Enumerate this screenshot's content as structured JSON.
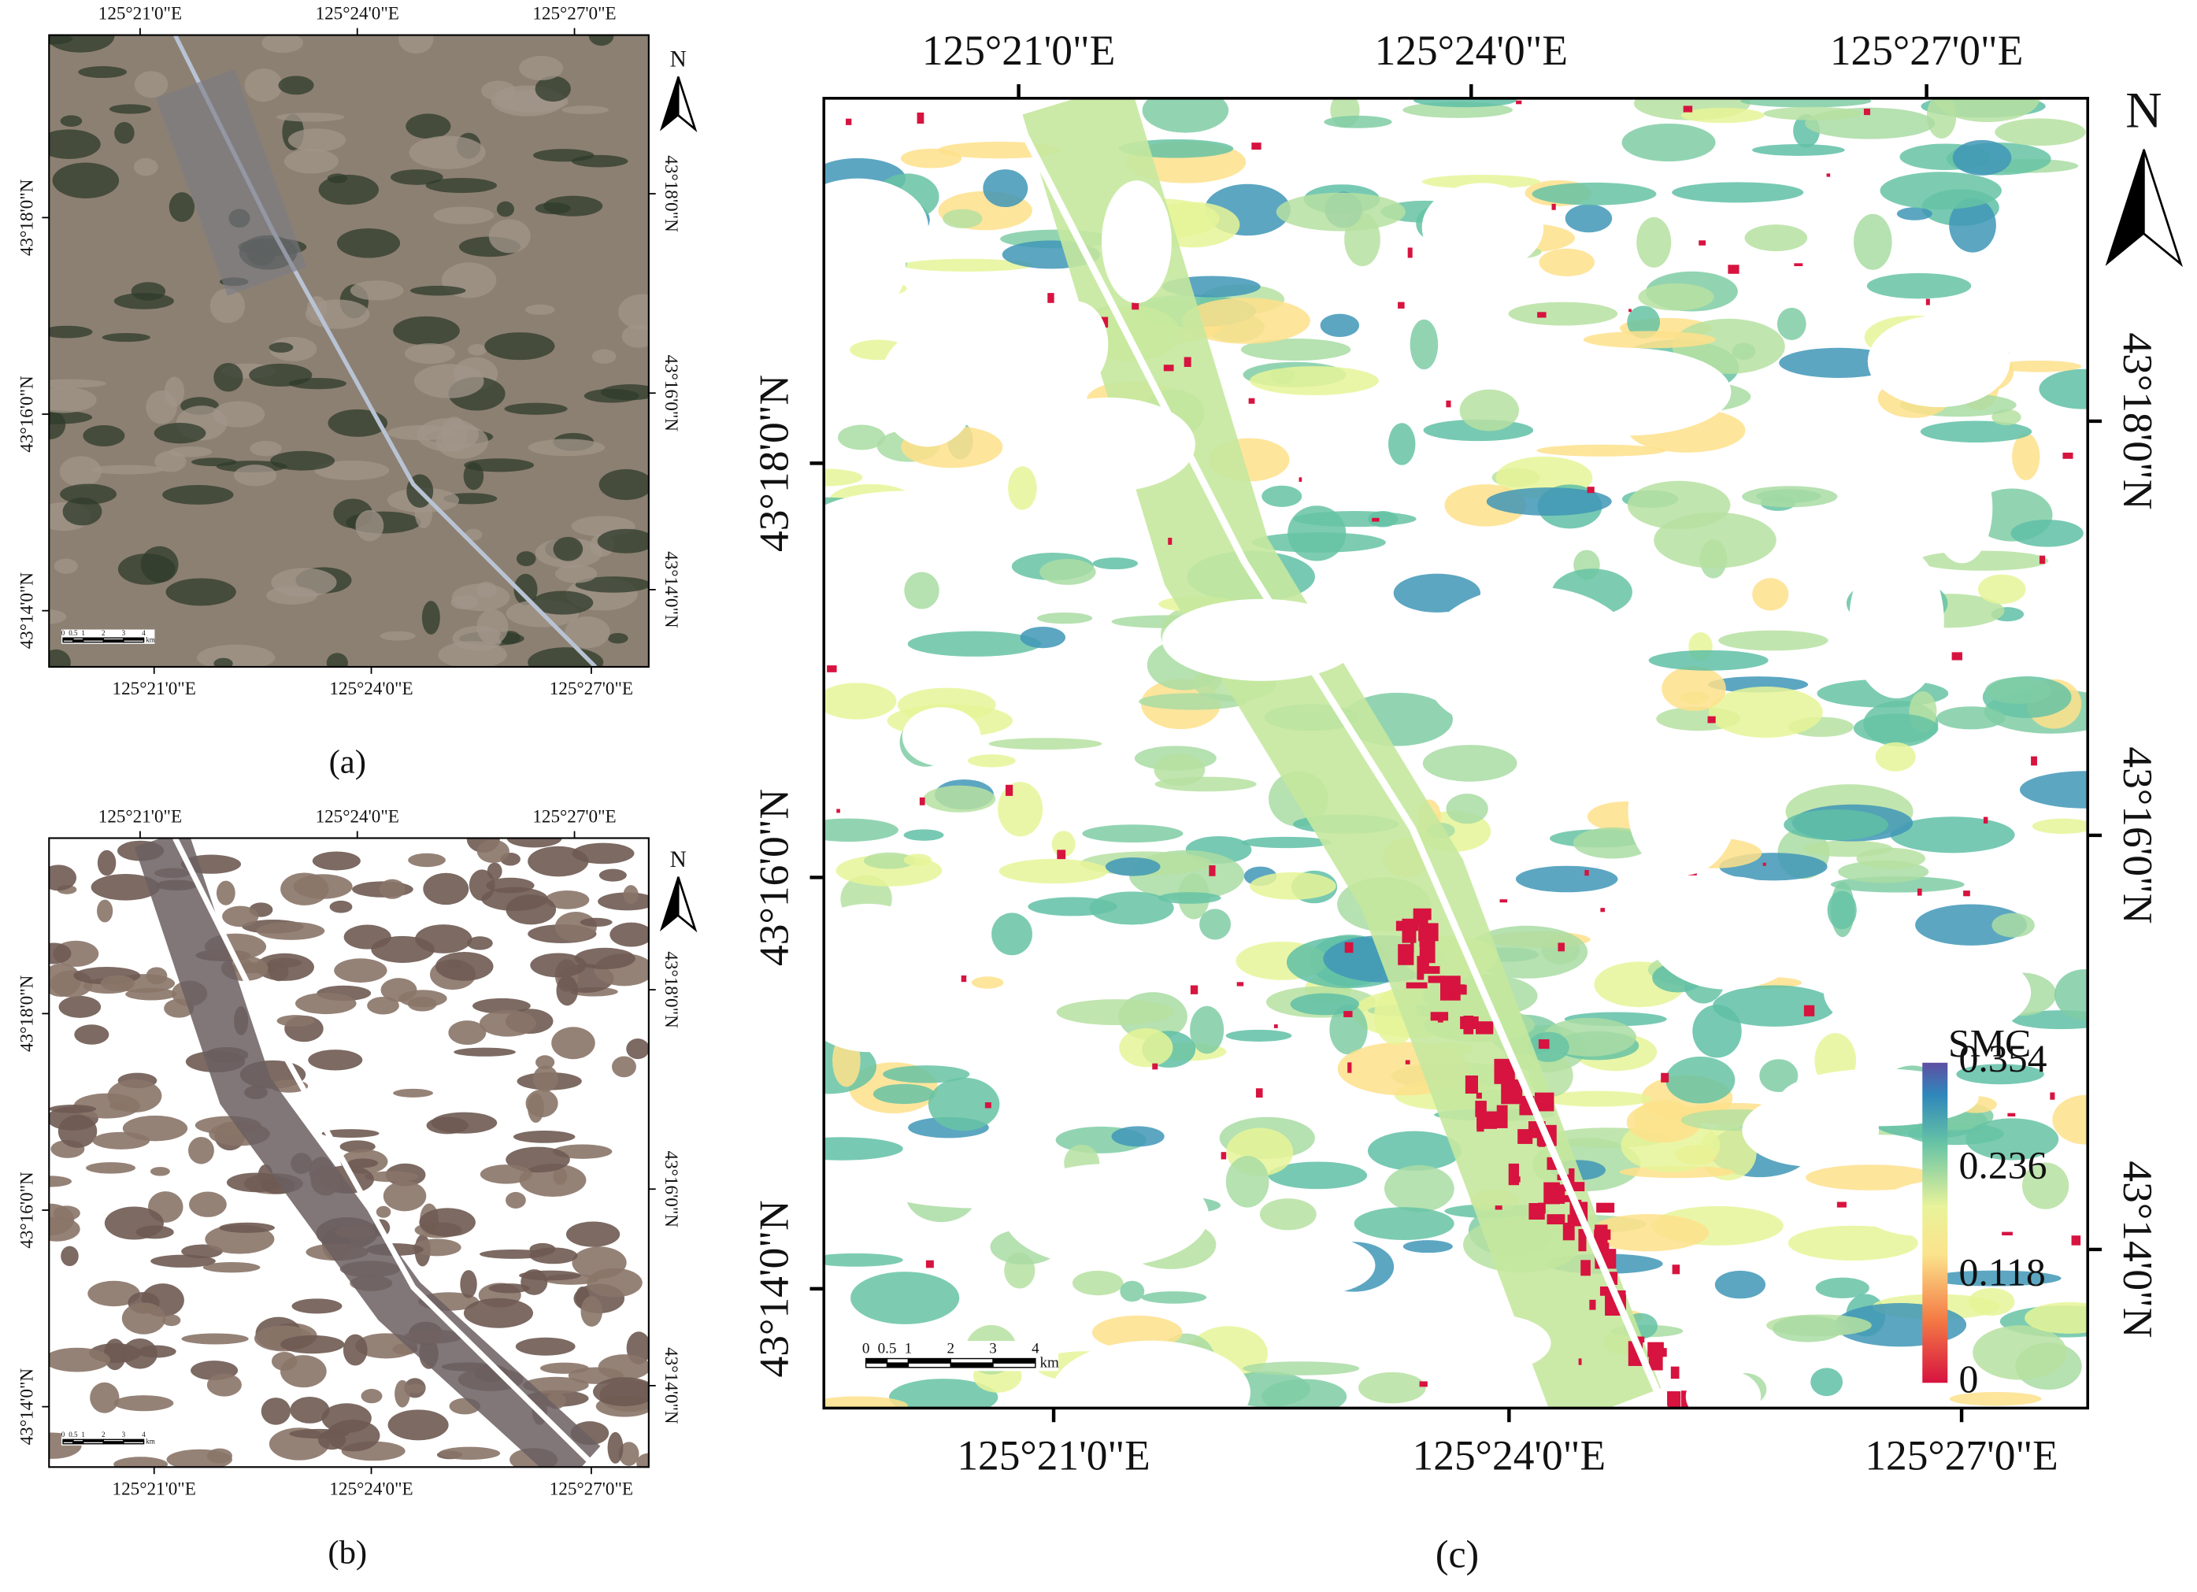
{
  "panels": [
    {
      "caption": "(a)",
      "top_ticks": [
        "125°21'0\"E",
        "125°24'0\"E",
        "125°27'0\"E"
      ],
      "bottom_ticks": [
        "125°21'0\"E",
        "125°24'0\"E",
        "125°27'0\"E"
      ],
      "left_ticks": [
        "43°18'0\"N",
        "43°16'0\"N",
        "43°14'0\"N"
      ],
      "right_ticks": [
        "43°18'0\"N",
        "43°16'0\"N",
        "43°14'0\"N"
      ],
      "north": "N",
      "scale_bar": {
        "labels": [
          0,
          0.5,
          1,
          2,
          3,
          4
        ],
        "unit": "km"
      }
    },
    {
      "caption": "(b)",
      "top_ticks": [
        "125°21'0\"E",
        "125°24'0\"E",
        "125°27'0\"E"
      ],
      "bottom_ticks": [
        "125°21'0\"E",
        "125°24'0\"E",
        "125°27'0\"E"
      ],
      "left_ticks": [
        "43°18'0\"N",
        "43°16'0\"N",
        "43°14'0\"N"
      ],
      "right_ticks": [
        "43°18'0\"N",
        "43°16'0\"N",
        "43°14'0\"N"
      ],
      "north": "N",
      "scale_bar": {
        "labels": [
          0,
          0.5,
          1,
          2,
          3,
          4
        ],
        "unit": "km"
      }
    },
    {
      "caption": "(c)",
      "top_ticks": [
        "125°21'0\"E",
        "125°24'0\"E",
        "125°27'0\"E"
      ],
      "bottom_ticks": [
        "125°21'0\"E",
        "125°24'0\"E",
        "125°27'0\"E"
      ],
      "left_ticks": [
        "43°18'0\"N",
        "43°16'0\"N",
        "43°14'0\"N"
      ],
      "right_ticks": [
        "43°18'0\"N",
        "43°16'0\"N",
        "43°14'0\"N"
      ],
      "north": "N",
      "scale_bar": {
        "labels": [
          0,
          0.5,
          1,
          2,
          3,
          4
        ],
        "unit": "km"
      }
    }
  ],
  "legend": {
    "title": "SMC",
    "ticks": [
      0.354,
      0.236,
      0.118,
      0
    ]
  }
}
